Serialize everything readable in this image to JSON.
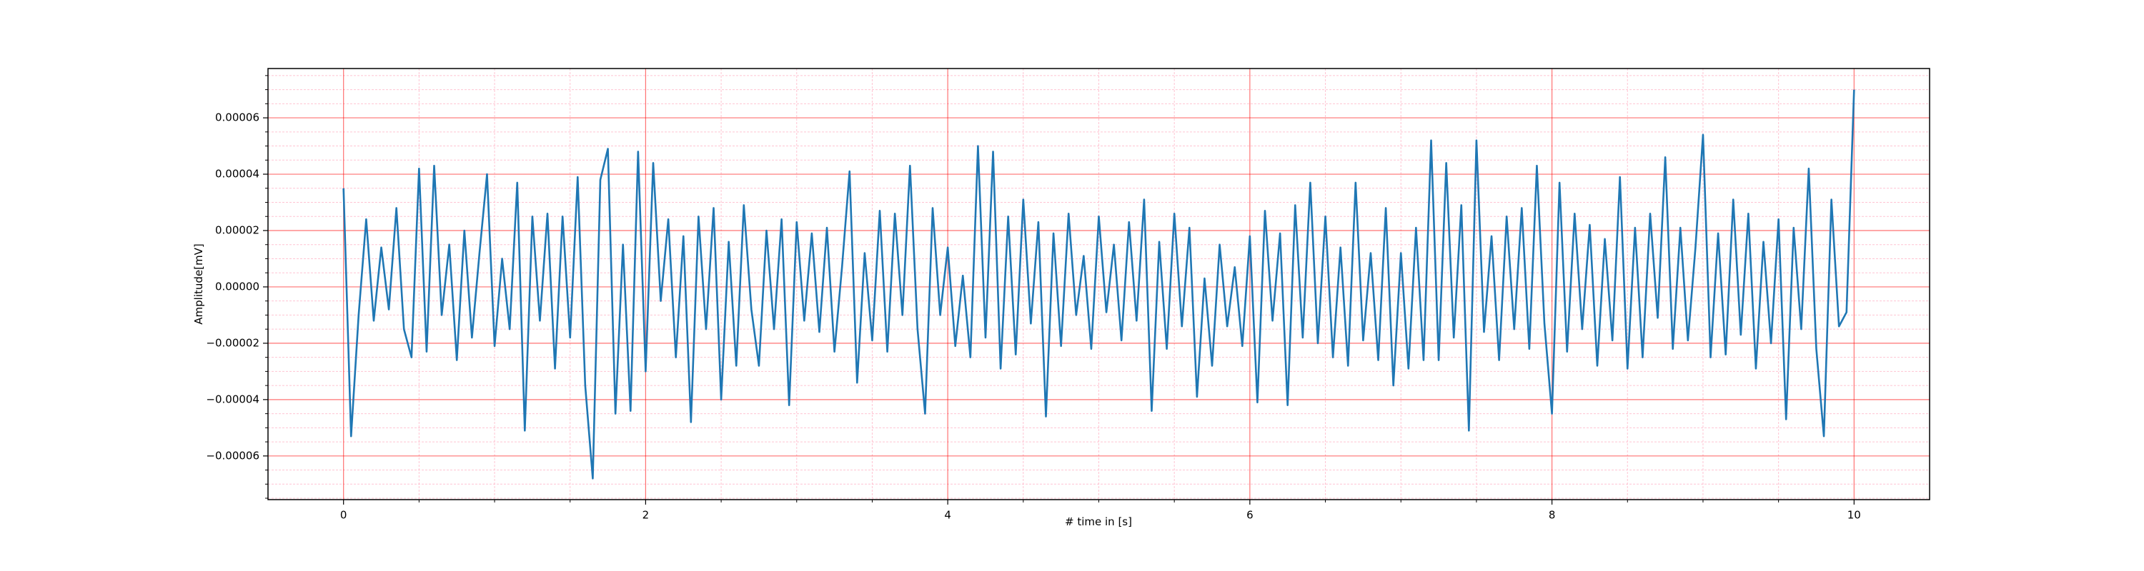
{
  "chart_data": {
    "type": "line",
    "xlabel": "# time in [s]",
    "ylabel": "Amplitude[mV]",
    "color": "#1f77b4",
    "grid": true,
    "grid_color": "#ff0000",
    "minor_grid_color": "#ffb6c8",
    "xlim": [
      -0.5,
      10.5
    ],
    "ylim": [
      -7.55e-05,
      7.75e-05
    ],
    "xticks": [
      0,
      2,
      4,
      6,
      8,
      10
    ],
    "yticks": [
      {
        "value": -6e-05,
        "label": "−0.00006"
      },
      {
        "value": -4e-05,
        "label": "−0.00004"
      },
      {
        "value": -2e-05,
        "label": "−0.00002"
      },
      {
        "value": 0,
        "label": "0.00000"
      },
      2e-05,
      4e-05,
      6e-05
    ],
    "minor_xticks": [
      0.5,
      1,
      1.5,
      2.5,
      3,
      3.5,
      4.5,
      5,
      5.5,
      6.5,
      7,
      7.5,
      8.5,
      9,
      9.5
    ],
    "minor_yticks": [
      -7.5e-05,
      -7e-05,
      -6.5e-05,
      -5.5e-05,
      -5e-05,
      -4.5e-05,
      -3.5e-05,
      -3e-05,
      -2.5e-05,
      -1.5e-05,
      -1e-05,
      -5e-06,
      5e-06,
      1e-05,
      1.5e-05,
      2.5e-05,
      3e-05,
      3.5e-05,
      4.5e-05,
      5e-05,
      5.5e-05,
      6.5e-05,
      7e-05,
      7.5e-05
    ],
    "x": [
      0,
      0.05,
      0.1,
      0.15,
      0.2,
      0.25,
      0.3,
      0.35,
      0.4,
      0.45,
      0.5,
      0.55,
      0.6,
      0.65,
      0.7,
      0.75,
      0.8,
      0.85,
      0.9,
      0.95,
      1,
      1.05,
      1.1,
      1.15,
      1.2,
      1.25,
      1.3,
      1.35,
      1.4,
      1.45,
      1.5,
      1.55,
      1.6,
      1.65,
      1.7,
      1.75,
      1.8,
      1.85,
      1.9,
      1.95,
      2,
      2.05,
      2.1,
      2.15,
      2.2,
      2.25,
      2.3,
      2.35,
      2.4,
      2.45,
      2.5,
      2.55,
      2.6,
      2.65,
      2.7,
      2.75,
      2.8,
      2.85,
      2.9,
      2.95,
      3,
      3.05,
      3.1,
      3.15,
      3.2,
      3.25,
      3.3,
      3.35,
      3.4,
      3.45,
      3.5,
      3.55,
      3.6,
      3.65,
      3.7,
      3.75,
      3.8,
      3.85,
      3.9,
      3.95,
      4,
      4.05,
      4.1,
      4.15,
      4.2,
      4.25,
      4.3,
      4.35,
      4.4,
      4.45,
      4.5,
      4.55,
      4.6,
      4.65,
      4.7,
      4.75,
      4.8,
      4.85,
      4.9,
      4.95,
      5,
      5.05,
      5.1,
      5.15,
      5.2,
      5.25,
      5.3,
      5.35,
      5.4,
      5.45,
      5.5,
      5.55,
      5.6,
      5.65,
      5.7,
      5.75,
      5.8,
      5.85,
      5.9,
      5.95,
      6,
      6.05,
      6.1,
      6.15,
      6.2,
      6.25,
      6.3,
      6.35,
      6.4,
      6.45,
      6.5,
      6.55,
      6.6,
      6.65,
      6.7,
      6.75,
      6.8,
      6.85,
      6.9,
      6.95,
      7,
      7.05,
      7.1,
      7.15,
      7.2,
      7.25,
      7.3,
      7.35,
      7.4,
      7.45,
      7.5,
      7.55,
      7.6,
      7.65,
      7.7,
      7.75,
      7.8,
      7.85,
      7.9,
      7.95,
      8,
      8.05,
      8.1,
      8.15,
      8.2,
      8.25,
      8.3,
      8.35,
      8.4,
      8.45,
      8.5,
      8.55,
      8.6,
      8.65,
      8.7,
      8.75,
      8.8,
      8.85,
      8.9,
      8.95,
      9,
      9.05,
      9.1,
      9.15,
      9.2,
      9.25,
      9.3,
      9.35,
      9.4,
      9.45,
      9.5,
      9.55,
      9.6,
      9.65,
      9.7,
      9.75,
      9.8,
      9.85,
      9.9,
      9.95,
      10
    ],
    "values": [
      3.5e-05,
      -5.3e-05,
      -1e-05,
      2.4e-05,
      -1.2e-05,
      1.4e-05,
      -8e-06,
      2.8e-05,
      -1.5e-05,
      -2.5e-05,
      4.2e-05,
      -2.3e-05,
      4.3e-05,
      -1e-05,
      1.5e-05,
      -2.6e-05,
      2e-05,
      -1.8e-05,
      1.2e-05,
      4e-05,
      -2.1e-05,
      1e-05,
      -1.5e-05,
      3.7e-05,
      -5.1e-05,
      2.5e-05,
      -1.2e-05,
      2.6e-05,
      -2.9e-05,
      2.5e-05,
      -1.8e-05,
      3.9e-05,
      -3.5e-05,
      -6.8e-05,
      3.8e-05,
      4.9e-05,
      -4.5e-05,
      1.5e-05,
      -4.4e-05,
      4.8e-05,
      -3e-05,
      4.4e-05,
      -5e-06,
      2.4e-05,
      -2.5e-05,
      1.8e-05,
      -4.8e-05,
      2.5e-05,
      -1.5e-05,
      2.8e-05,
      -4e-05,
      1.6e-05,
      -2.8e-05,
      2.9e-05,
      -8e-06,
      -2.8e-05,
      2e-05,
      -1.5e-05,
      2.4e-05,
      -4.2e-05,
      2.3e-05,
      -1.2e-05,
      1.9e-05,
      -1.6e-05,
      2.1e-05,
      -2.3e-05,
      7e-06,
      4.1e-05,
      -3.4e-05,
      1.2e-05,
      -1.9e-05,
      2.7e-05,
      -2.3e-05,
      2.6e-05,
      -1e-05,
      4.3e-05,
      -1.5e-05,
      -4.5e-05,
      2.8e-05,
      -1e-05,
      1.4e-05,
      -2.1e-05,
      4e-06,
      -2.5e-05,
      5e-05,
      -1.8e-05,
      4.8e-05,
      -2.9e-05,
      2.5e-05,
      -2.4e-05,
      3.1e-05,
      -1.3e-05,
      2.3e-05,
      -4.6e-05,
      1.9e-05,
      -2.1e-05,
      2.6e-05,
      -1e-05,
      1.1e-05,
      -2.2e-05,
      2.5e-05,
      -9e-06,
      1.5e-05,
      -1.9e-05,
      2.3e-05,
      -1.2e-05,
      3.1e-05,
      -4.4e-05,
      1.6e-05,
      -2.2e-05,
      2.6e-05,
      -1.4e-05,
      2.1e-05,
      -3.9e-05,
      3e-06,
      -2.8e-05,
      1.5e-05,
      -1.4e-05,
      7e-06,
      -2.1e-05,
      1.8e-05,
      -4.1e-05,
      2.7e-05,
      -1.2e-05,
      1.9e-05,
      -4.2e-05,
      2.9e-05,
      -1.8e-05,
      3.7e-05,
      -2e-05,
      2.5e-05,
      -2.5e-05,
      1.4e-05,
      -2.8e-05,
      3.7e-05,
      -1.9e-05,
      1.2e-05,
      -2.6e-05,
      2.8e-05,
      -3.5e-05,
      1.2e-05,
      -2.9e-05,
      2.1e-05,
      -2.6e-05,
      5.2e-05,
      -2.6e-05,
      4.4e-05,
      -1.8e-05,
      2.9e-05,
      -5.1e-05,
      5.2e-05,
      -1.6e-05,
      1.8e-05,
      -2.6e-05,
      2.5e-05,
      -1.5e-05,
      2.8e-05,
      -2.2e-05,
      4.3e-05,
      -1.3e-05,
      -4.5e-05,
      3.7e-05,
      -2.3e-05,
      2.6e-05,
      -1.5e-05,
      2.2e-05,
      -2.8e-05,
      1.7e-05,
      -1.9e-05,
      3.9e-05,
      -2.9e-05,
      2.1e-05,
      -2.5e-05,
      2.6e-05,
      -1.1e-05,
      4.6e-05,
      -2.2e-05,
      2.1e-05,
      -1.9e-05,
      1.4e-05,
      5.4e-05,
      -2.5e-05,
      1.9e-05,
      -2.4e-05,
      3.1e-05,
      -1.7e-05,
      2.6e-05,
      -2.9e-05,
      1.6e-05,
      -2e-05,
      2.4e-05,
      -4.7e-05,
      2.1e-05,
      -1.5e-05,
      4.2e-05,
      -2.2e-05,
      -5.3e-05,
      3.1e-05,
      -1.4e-05,
      -9e-06,
      7e-05
    ]
  }
}
